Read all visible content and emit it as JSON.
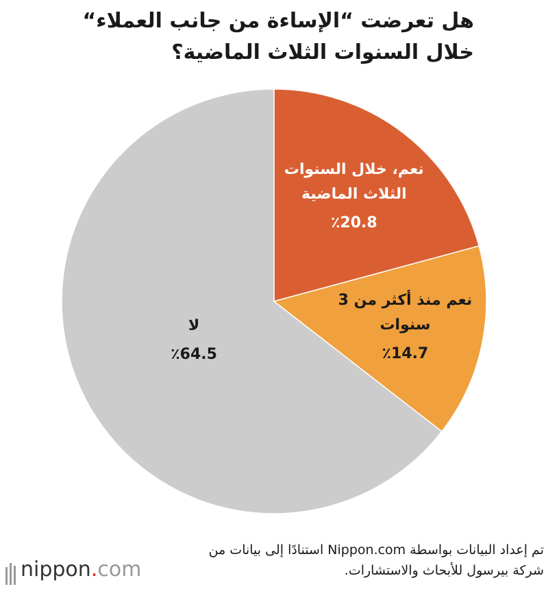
{
  "chart_data": {
    "type": "pie",
    "title": "هل تعرضت “الإساءة من جانب العملاء“ خلال السنوات الثلاث الماضية؟",
    "categories": [
      "نعم، خلال السنوات الثلاث الماضية",
      "نعم منذ أكثر من 3 سنوات",
      "لا"
    ],
    "values": [
      20.8,
      14.7,
      64.5
    ],
    "value_labels": [
      "٪20.8",
      "٪14.7",
      "٪64.5"
    ],
    "colors": [
      "#d95f32",
      "#f0a03c",
      "#cccccc"
    ],
    "label_colors": [
      "#ffffff",
      "#1a1a1a",
      "#1a1a1a"
    ],
    "source": "تم إعداد البيانات بواسطة Nippon.com استنادًا إلى بيانات من شركة بيرسول للأبحاث والاستشارات.",
    "logo_name": "nippon",
    "logo_dot": ".",
    "logo_suffix": "com"
  }
}
